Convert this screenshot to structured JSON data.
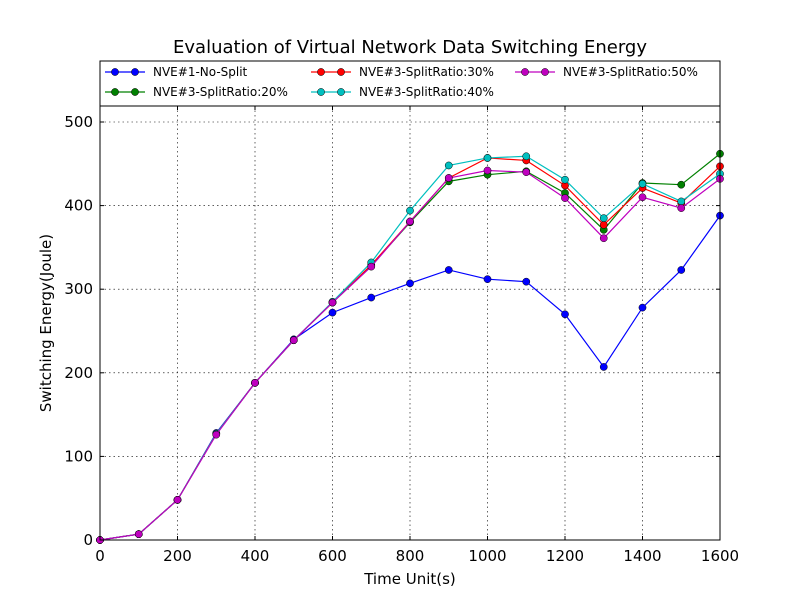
{
  "chart_data": {
    "type": "line",
    "title": "Evaluation of Virtual Network Data Switching Energy",
    "xlabel": "Time Unit(s)",
    "ylabel": "Switching Energy(Joule)",
    "xlim": [
      0,
      1600
    ],
    "ylim": [
      0,
      520
    ],
    "x_ticks": [
      0,
      200,
      400,
      600,
      800,
      1000,
      1200,
      1400,
      1600
    ],
    "y_ticks": [
      0,
      100,
      200,
      300,
      400,
      500
    ],
    "grid": true,
    "legend_position": "top, above plot area",
    "x": [
      0,
      100,
      200,
      300,
      400,
      500,
      600,
      700,
      800,
      900,
      1000,
      1100,
      1200,
      1300,
      1400,
      1500,
      1600
    ],
    "series": [
      {
        "name": "NVE#1-No-Split",
        "color": "#0000ff",
        "values": [
          0,
          7,
          48,
          128,
          188,
          240,
          272,
          290,
          307,
          323,
          312,
          309,
          270,
          207,
          278,
          323,
          388
        ]
      },
      {
        "name": "NVE#3-SplitRatio:20%",
        "color": "#008000",
        "values": [
          0,
          7,
          48,
          127,
          188,
          239,
          284,
          328,
          380,
          429,
          437,
          441,
          415,
          371,
          427,
          425,
          462
        ]
      },
      {
        "name": "NVE#3-SplitRatio:30%",
        "color": "#ff0000",
        "values": [
          0,
          7,
          48,
          127,
          188,
          239,
          284,
          329,
          381,
          433,
          457,
          454,
          424,
          377,
          421,
          403,
          447
        ]
      },
      {
        "name": "NVE#3-SplitRatio:40%",
        "color": "#00bfbf",
        "values": [
          0,
          7,
          48,
          127,
          188,
          239,
          285,
          332,
          394,
          448,
          457,
          459,
          431,
          385,
          426,
          405,
          438
        ]
      },
      {
        "name": "NVE#3-SplitRatio:50%",
        "color": "#bf00bf",
        "values": [
          0,
          7,
          48,
          126,
          188,
          239,
          284,
          327,
          381,
          433,
          442,
          440,
          409,
          361,
          410,
          397,
          432
        ]
      }
    ]
  }
}
